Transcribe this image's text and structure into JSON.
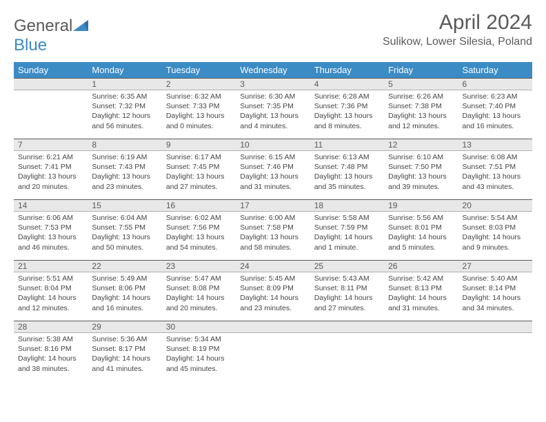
{
  "logo": {
    "text_prefix": "General",
    "text_suffix": "Blue"
  },
  "title": "April 2024",
  "location": "Sulikow, Lower Silesia, Poland",
  "colors": {
    "header_bg": "#3b8bc5",
    "header_text": "#ffffff",
    "day_header_bg": "#e8e8e8",
    "day_header_border_top": "#5a5a5a",
    "text_primary": "#5a5a5a",
    "body_text": "#444444",
    "page_bg": "#ffffff"
  },
  "typography": {
    "title_fontsize": 30,
    "location_fontsize": 16,
    "weekday_fontsize": 13,
    "daynum_fontsize": 12,
    "cell_fontsize": 10.5
  },
  "weekdays": [
    "Sunday",
    "Monday",
    "Tuesday",
    "Wednesday",
    "Thursday",
    "Friday",
    "Saturday"
  ],
  "calendar": {
    "month": 4,
    "year": 2024,
    "first_weekday_index": 1,
    "days": [
      {
        "n": 1,
        "sunrise": "6:35 AM",
        "sunset": "7:32 PM",
        "daylight": "12 hours and 56 minutes."
      },
      {
        "n": 2,
        "sunrise": "6:32 AM",
        "sunset": "7:33 PM",
        "daylight": "13 hours and 0 minutes."
      },
      {
        "n": 3,
        "sunrise": "6:30 AM",
        "sunset": "7:35 PM",
        "daylight": "13 hours and 4 minutes."
      },
      {
        "n": 4,
        "sunrise": "6:28 AM",
        "sunset": "7:36 PM",
        "daylight": "13 hours and 8 minutes."
      },
      {
        "n": 5,
        "sunrise": "6:26 AM",
        "sunset": "7:38 PM",
        "daylight": "13 hours and 12 minutes."
      },
      {
        "n": 6,
        "sunrise": "6:23 AM",
        "sunset": "7:40 PM",
        "daylight": "13 hours and 16 minutes."
      },
      {
        "n": 7,
        "sunrise": "6:21 AM",
        "sunset": "7:41 PM",
        "daylight": "13 hours and 20 minutes."
      },
      {
        "n": 8,
        "sunrise": "6:19 AM",
        "sunset": "7:43 PM",
        "daylight": "13 hours and 23 minutes."
      },
      {
        "n": 9,
        "sunrise": "6:17 AM",
        "sunset": "7:45 PM",
        "daylight": "13 hours and 27 minutes."
      },
      {
        "n": 10,
        "sunrise": "6:15 AM",
        "sunset": "7:46 PM",
        "daylight": "13 hours and 31 minutes."
      },
      {
        "n": 11,
        "sunrise": "6:13 AM",
        "sunset": "7:48 PM",
        "daylight": "13 hours and 35 minutes."
      },
      {
        "n": 12,
        "sunrise": "6:10 AM",
        "sunset": "7:50 PM",
        "daylight": "13 hours and 39 minutes."
      },
      {
        "n": 13,
        "sunrise": "6:08 AM",
        "sunset": "7:51 PM",
        "daylight": "13 hours and 43 minutes."
      },
      {
        "n": 14,
        "sunrise": "6:06 AM",
        "sunset": "7:53 PM",
        "daylight": "13 hours and 46 minutes."
      },
      {
        "n": 15,
        "sunrise": "6:04 AM",
        "sunset": "7:55 PM",
        "daylight": "13 hours and 50 minutes."
      },
      {
        "n": 16,
        "sunrise": "6:02 AM",
        "sunset": "7:56 PM",
        "daylight": "13 hours and 54 minutes."
      },
      {
        "n": 17,
        "sunrise": "6:00 AM",
        "sunset": "7:58 PM",
        "daylight": "13 hours and 58 minutes."
      },
      {
        "n": 18,
        "sunrise": "5:58 AM",
        "sunset": "7:59 PM",
        "daylight": "14 hours and 1 minute."
      },
      {
        "n": 19,
        "sunrise": "5:56 AM",
        "sunset": "8:01 PM",
        "daylight": "14 hours and 5 minutes."
      },
      {
        "n": 20,
        "sunrise": "5:54 AM",
        "sunset": "8:03 PM",
        "daylight": "14 hours and 9 minutes."
      },
      {
        "n": 21,
        "sunrise": "5:51 AM",
        "sunset": "8:04 PM",
        "daylight": "14 hours and 12 minutes."
      },
      {
        "n": 22,
        "sunrise": "5:49 AM",
        "sunset": "8:06 PM",
        "daylight": "14 hours and 16 minutes."
      },
      {
        "n": 23,
        "sunrise": "5:47 AM",
        "sunset": "8:08 PM",
        "daylight": "14 hours and 20 minutes."
      },
      {
        "n": 24,
        "sunrise": "5:45 AM",
        "sunset": "8:09 PM",
        "daylight": "14 hours and 23 minutes."
      },
      {
        "n": 25,
        "sunrise": "5:43 AM",
        "sunset": "8:11 PM",
        "daylight": "14 hours and 27 minutes."
      },
      {
        "n": 26,
        "sunrise": "5:42 AM",
        "sunset": "8:13 PM",
        "daylight": "14 hours and 31 minutes."
      },
      {
        "n": 27,
        "sunrise": "5:40 AM",
        "sunset": "8:14 PM",
        "daylight": "14 hours and 34 minutes."
      },
      {
        "n": 28,
        "sunrise": "5:38 AM",
        "sunset": "8:16 PM",
        "daylight": "14 hours and 38 minutes."
      },
      {
        "n": 29,
        "sunrise": "5:36 AM",
        "sunset": "8:17 PM",
        "daylight": "14 hours and 41 minutes."
      },
      {
        "n": 30,
        "sunrise": "5:34 AM",
        "sunset": "8:19 PM",
        "daylight": "14 hours and 45 minutes."
      }
    ]
  },
  "labels": {
    "sunrise_prefix": "Sunrise: ",
    "sunset_prefix": "Sunset: ",
    "daylight_prefix": "Daylight: "
  }
}
